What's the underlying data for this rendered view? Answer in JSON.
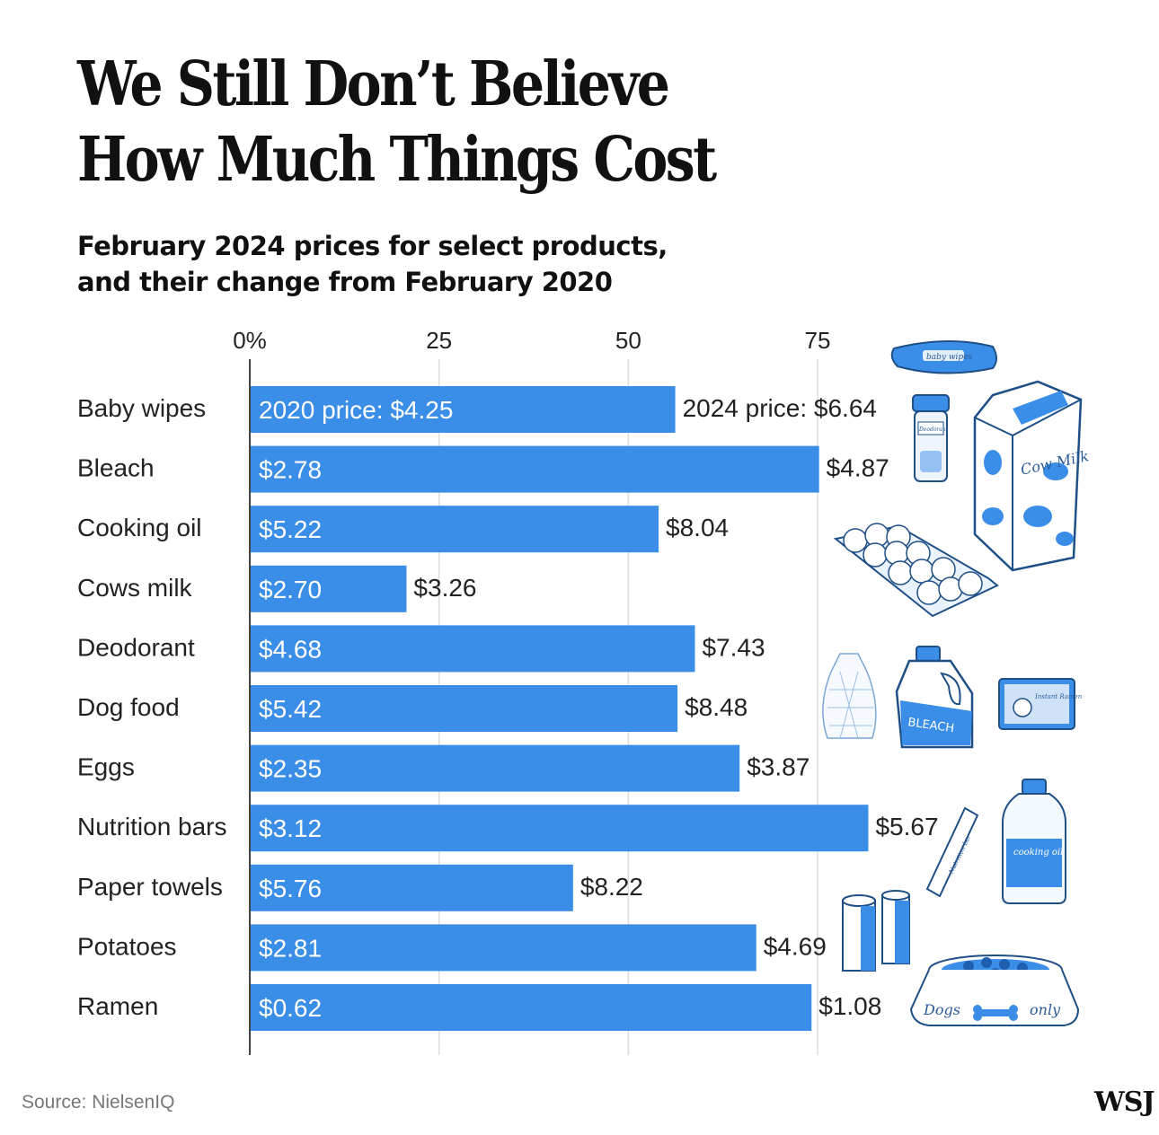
{
  "header": {
    "title_line1": "We Still Don’t Believe",
    "title_line2": "How Much Things Cost",
    "subtitle_line1": "February 2024 prices for select products,",
    "subtitle_line2": "and their change from February 2020"
  },
  "footer": {
    "source": "Source: NielsenIQ",
    "logo": "WSJ"
  },
  "colors": {
    "bar": "#3b8ee8",
    "grid": "#dddddd",
    "axis": "#444444",
    "ink": "#2a5a9a"
  },
  "illustrations": {
    "baby_wipes_pack": "baby wipes",
    "deodorant_stick": "Deodorant",
    "milk_carton": "Cow Milk",
    "bleach_jug": "BLEACH",
    "ramen_pack": "Instant Ramen",
    "nutrition_bar": "Nutrition bar",
    "oil_bottle": "cooking oil",
    "dog_bowl_left": "Dogs",
    "dog_bowl_right": "only"
  },
  "chart_data": {
    "type": "bar",
    "orientation": "horizontal",
    "title": "February 2024 prices for select products, and their change from February 2020",
    "xlabel": "",
    "ylabel": "",
    "xlim": [
      0,
      75
    ],
    "xticks": [
      0,
      25,
      50,
      75
    ],
    "xtick_labels": [
      "0%",
      "25",
      "50",
      "75"
    ],
    "grid": true,
    "categories": [
      "Baby wipes",
      "Bleach",
      "Cooking oil",
      "Cows milk",
      "Deodorant",
      "Dog food",
      "Eggs",
      "Nutrition bars",
      "Paper towels",
      "Potatoes",
      "Ramen"
    ],
    "series": [
      {
        "name": "Percent change from February 2020",
        "values": [
          56.2,
          75.2,
          54.0,
          20.7,
          58.8,
          56.5,
          64.7,
          81.7,
          42.7,
          66.9,
          74.2
        ]
      }
    ],
    "price_2020_labels": [
      "2020 price: $4.25",
      "$2.78",
      "$5.22",
      "$2.70",
      "$4.68",
      "$5.42",
      "$2.35",
      "$3.12",
      "$5.76",
      "$2.81",
      "$0.62"
    ],
    "price_2024_labels": [
      "2024 price: $6.64",
      "$4.87",
      "$8.04",
      "$3.26",
      "$7.43",
      "$8.48",
      "$3.87",
      "$5.67",
      "$8.22",
      "$4.69",
      "$1.08"
    ]
  }
}
